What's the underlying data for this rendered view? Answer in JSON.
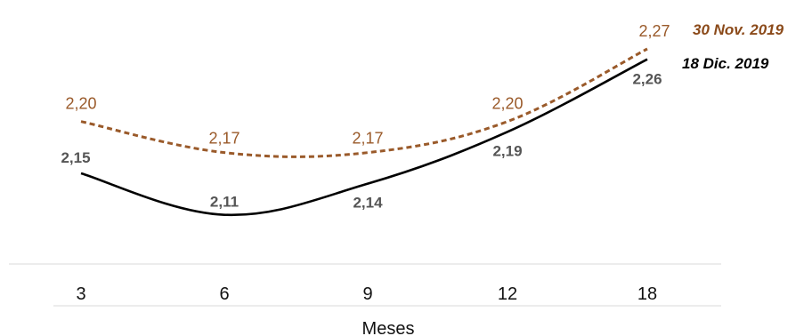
{
  "chart_data": {
    "type": "line",
    "title": "",
    "xlabel": "Meses",
    "ylabel": "",
    "categories": [
      "3",
      "6",
      "9",
      "12",
      "18"
    ],
    "ylim": [
      2.06,
      2.3
    ],
    "grid": false,
    "legend_placement": "top-right (inline labels at line ends)",
    "series": [
      {
        "name": "30 Nov. 2019",
        "style": "dashed",
        "color": "#9a5a2a",
        "values": [
          2.2,
          2.17,
          2.17,
          2.2,
          2.27
        ],
        "labels": [
          "2,20",
          "2,17",
          "2,17",
          "2,20",
          "2,27"
        ]
      },
      {
        "name": "18 Dic. 2019",
        "style": "solid",
        "color": "#000000",
        "values": [
          2.15,
          2.11,
          2.14,
          2.19,
          2.26
        ],
        "labels": [
          "2,15",
          "2,11",
          "2,14",
          "2,19",
          "2,26"
        ]
      }
    ]
  }
}
